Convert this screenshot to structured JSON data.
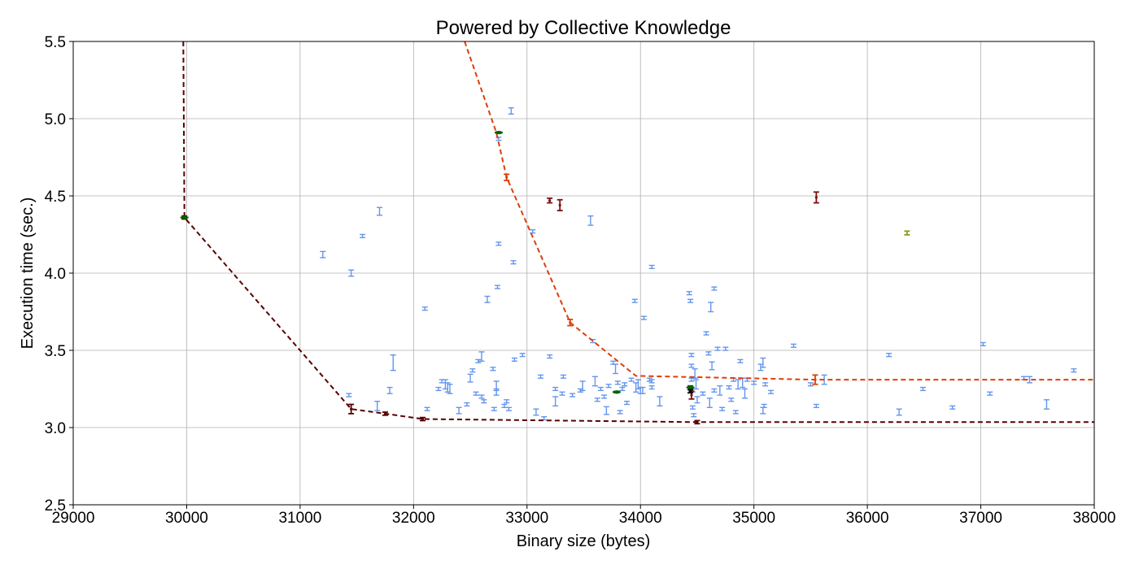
{
  "chart_data": {
    "type": "scatter",
    "title": "Powered by Collective Knowledge",
    "xlabel": "Binary size (bytes)",
    "ylabel": "Execution time (sec.)",
    "xlim": [
      29000,
      38000
    ],
    "ylim": [
      2.5,
      5.5
    ],
    "xticks": [
      29000,
      30000,
      31000,
      32000,
      33000,
      34000,
      35000,
      36000,
      37000,
      38000
    ],
    "yticks": [
      2.5,
      3.0,
      3.5,
      4.0,
      4.5,
      5.0,
      5.5
    ],
    "xtick_labels": [
      "29000",
      "30000",
      "31000",
      "32000",
      "33000",
      "34000",
      "35000",
      "36000",
      "37000",
      "38000"
    ],
    "ytick_labels": [
      "2.5",
      "3.0",
      "3.5",
      "4.0",
      "4.5",
      "5.0",
      "5.5"
    ],
    "grid": true,
    "colors": {
      "points": "#6495ed",
      "front_dark": "#5a0000",
      "front_orange": "#dd3e0a",
      "highlight_green": "#006400",
      "highlight_dark": "#000000",
      "highlight_maroon": "#7a1010",
      "olive": "#8a9a20"
    },
    "series": [
      {
        "style": "points",
        "color": "#6495ed",
        "points": [
          [
            31200,
            4.12,
            0.02
          ],
          [
            31450,
            4.0,
            0.02
          ],
          [
            31550,
            4.24,
            0.01
          ],
          [
            31700,
            4.4,
            0.025
          ],
          [
            31430,
            3.21,
            0.01
          ],
          [
            31680,
            3.14,
            0.03
          ],
          [
            31790,
            3.24,
            0.02
          ],
          [
            31820,
            3.42,
            0.05
          ],
          [
            32100,
            3.77,
            0.01
          ],
          [
            32120,
            3.12,
            0.01
          ],
          [
            32220,
            3.25,
            0.01
          ],
          [
            32250,
            3.3,
            0.01
          ],
          [
            32280,
            3.28,
            0.03
          ],
          [
            32300,
            3.26,
            0.03
          ],
          [
            32320,
            3.25,
            0.03
          ],
          [
            32400,
            3.11,
            0.02
          ],
          [
            32470,
            3.15,
            0.01
          ],
          [
            32500,
            3.32,
            0.025
          ],
          [
            32520,
            3.37,
            0.01
          ],
          [
            32550,
            3.22,
            0.01
          ],
          [
            32570,
            3.43,
            0.01
          ],
          [
            32600,
            3.46,
            0.03
          ],
          [
            32600,
            3.2,
            0.01
          ],
          [
            32620,
            3.17,
            0.01
          ],
          [
            32650,
            3.83,
            0.02
          ],
          [
            32700,
            3.38,
            0.01
          ],
          [
            32710,
            3.12,
            0.01
          ],
          [
            32730,
            3.27,
            0.03
          ],
          [
            32730,
            3.23,
            0.02
          ],
          [
            32740,
            3.91,
            0.01
          ],
          [
            32750,
            4.19,
            0.01
          ],
          [
            32750,
            4.87,
            0.01
          ],
          [
            32800,
            3.14,
            0.01
          ],
          [
            32820,
            3.17,
            0.01
          ],
          [
            32840,
            3.12,
            0.01
          ],
          [
            32860,
            5.05,
            0.02
          ],
          [
            32880,
            4.07,
            0.01
          ],
          [
            32890,
            3.44,
            0.01
          ],
          [
            32960,
            3.47,
            0.01
          ],
          [
            33050,
            4.27,
            0.01
          ],
          [
            33080,
            3.1,
            0.02
          ],
          [
            33120,
            3.33,
            0.01
          ],
          [
            33150,
            3.06,
            0.01
          ],
          [
            33200,
            3.46,
            0.01
          ],
          [
            33250,
            3.25,
            0.01
          ],
          [
            33250,
            3.17,
            0.03
          ],
          [
            33310,
            3.22,
            0.01
          ],
          [
            33320,
            3.33,
            0.01
          ],
          [
            33400,
            3.21,
            0.01
          ],
          [
            33470,
            3.24,
            0.01
          ],
          [
            33490,
            3.27,
            0.03
          ],
          [
            33560,
            4.34,
            0.03
          ],
          [
            33580,
            3.56,
            0.01
          ],
          [
            33600,
            3.3,
            0.03
          ],
          [
            33620,
            3.18,
            0.01
          ],
          [
            33650,
            3.25,
            0.01
          ],
          [
            33680,
            3.2,
            0.01
          ],
          [
            33700,
            3.11,
            0.025
          ],
          [
            33720,
            3.27,
            0.01
          ],
          [
            33760,
            3.42,
            0.01
          ],
          [
            33780,
            3.38,
            0.03
          ],
          [
            33800,
            3.29,
            0.01
          ],
          [
            33820,
            3.1,
            0.01
          ],
          [
            33840,
            3.25,
            0.01
          ],
          [
            33860,
            3.28,
            0.01
          ],
          [
            33880,
            3.16,
            0.01
          ],
          [
            33920,
            3.31,
            0.01
          ],
          [
            33950,
            3.82,
            0.01
          ],
          [
            33960,
            3.26,
            0.03
          ],
          [
            33980,
            3.28,
            0.03
          ],
          [
            34000,
            3.24,
            0.02
          ],
          [
            34020,
            3.24,
            0.02
          ],
          [
            34030,
            3.71,
            0.01
          ],
          [
            34080,
            3.31,
            0.01
          ],
          [
            34100,
            4.04,
            0.01
          ],
          [
            34100,
            3.3,
            0.01
          ],
          [
            34100,
            3.26,
            0.01
          ],
          [
            34170,
            3.17,
            0.03
          ],
          [
            34430,
            3.87,
            0.01
          ],
          [
            34440,
            3.82,
            0.01
          ],
          [
            34450,
            3.47,
            0.01
          ],
          [
            34450,
            3.4,
            0.01
          ],
          [
            34450,
            3.31,
            0.01
          ],
          [
            34460,
            3.24,
            0.01
          ],
          [
            34460,
            3.13,
            0.01
          ],
          [
            34470,
            3.08,
            0.01
          ],
          [
            34480,
            3.35,
            0.03
          ],
          [
            34490,
            3.28,
            0.03
          ],
          [
            34500,
            3.18,
            0.02
          ],
          [
            34550,
            3.22,
            0.01
          ],
          [
            34580,
            3.61,
            0.01
          ],
          [
            34600,
            3.48,
            0.01
          ],
          [
            34610,
            3.16,
            0.03
          ],
          [
            34620,
            3.78,
            0.03
          ],
          [
            34630,
            3.4,
            0.025
          ],
          [
            34650,
            3.9,
            0.01
          ],
          [
            34650,
            3.24,
            0.01
          ],
          [
            34680,
            3.51,
            0.01
          ],
          [
            34700,
            3.24,
            0.03
          ],
          [
            34720,
            3.12,
            0.01
          ],
          [
            34750,
            3.51,
            0.01
          ],
          [
            34780,
            3.26,
            0.01
          ],
          [
            34800,
            3.18,
            0.01
          ],
          [
            34820,
            3.31,
            0.01
          ],
          [
            34840,
            3.1,
            0.01
          ],
          [
            34860,
            3.28,
            0.03
          ],
          [
            34880,
            3.43,
            0.01
          ],
          [
            34900,
            3.29,
            0.03
          ],
          [
            34920,
            3.22,
            0.03
          ],
          [
            34940,
            3.31,
            0.01
          ],
          [
            35000,
            3.29,
            0.01
          ],
          [
            35060,
            3.39,
            0.02
          ],
          [
            35080,
            3.42,
            0.03
          ],
          [
            35080,
            3.11,
            0.02
          ],
          [
            35090,
            3.14,
            0.01
          ],
          [
            35100,
            3.28,
            0.01
          ],
          [
            35150,
            3.23,
            0.01
          ],
          [
            35350,
            3.53,
            0.01
          ],
          [
            35500,
            3.28,
            0.01
          ],
          [
            35550,
            3.14,
            0.01
          ],
          [
            35620,
            3.31,
            0.03
          ],
          [
            36190,
            3.47,
            0.01
          ],
          [
            36280,
            3.1,
            0.02
          ],
          [
            36490,
            3.25,
            0.01
          ],
          [
            36750,
            3.13,
            0.01
          ],
          [
            37020,
            3.54,
            0.01
          ],
          [
            37080,
            3.22,
            0.01
          ],
          [
            37380,
            3.32,
            0.01
          ],
          [
            37430,
            3.31,
            0.02
          ],
          [
            37580,
            3.15,
            0.03
          ],
          [
            37820,
            3.37,
            0.01
          ]
        ]
      },
      {
        "style": "dashed-line",
        "color": "#5a0000",
        "points": [
          [
            29970,
            5.5
          ],
          [
            29980,
            4.36
          ],
          [
            31450,
            3.12
          ],
          [
            31750,
            3.09
          ],
          [
            32080,
            3.055
          ],
          [
            34500,
            3.035
          ],
          [
            38000,
            3.035
          ]
        ]
      },
      {
        "style": "dashed-line",
        "color": "#dd3e0a",
        "points": [
          [
            32450,
            5.5
          ],
          [
            32730,
            4.91
          ],
          [
            32820,
            4.62
          ],
          [
            33380,
            3.68
          ],
          [
            33960,
            3.335
          ],
          [
            35540,
            3.31
          ],
          [
            38000,
            3.31
          ]
        ]
      },
      {
        "style": "points",
        "color": "#5a0000",
        "points": [
          [
            29980,
            4.36,
            0.01
          ],
          [
            31450,
            3.12,
            0.03
          ],
          [
            31750,
            3.09,
            0.01
          ],
          [
            32080,
            3.055,
            0.01
          ],
          [
            34500,
            3.035,
            0.01
          ]
        ]
      },
      {
        "style": "points",
        "color": "#dd3e0a",
        "points": [
          [
            32820,
            4.62,
            0.02
          ],
          [
            33380,
            3.68,
            0.02
          ],
          [
            35540,
            3.31,
            0.03
          ]
        ]
      },
      {
        "style": "points",
        "color": "#006400",
        "points": [
          [
            29980,
            4.36,
            0.005
          ],
          [
            32750,
            4.91,
            0.005
          ],
          [
            33790,
            3.23,
            0.005
          ],
          [
            34440,
            3.26,
            0.01
          ]
        ]
      },
      {
        "style": "points",
        "color": "#7a1010",
        "points": [
          [
            33200,
            4.47,
            0.015
          ],
          [
            33290,
            4.44,
            0.035
          ],
          [
            35550,
            4.49,
            0.035
          ],
          [
            34450,
            3.21,
            0.025
          ]
        ]
      },
      {
        "style": "points",
        "color": "#000000",
        "points": [
          [
            34440,
            3.235,
            0.01
          ]
        ]
      },
      {
        "style": "points",
        "color": "#8a9a20",
        "points": [
          [
            36350,
            4.26,
            0.012
          ]
        ]
      }
    ]
  }
}
